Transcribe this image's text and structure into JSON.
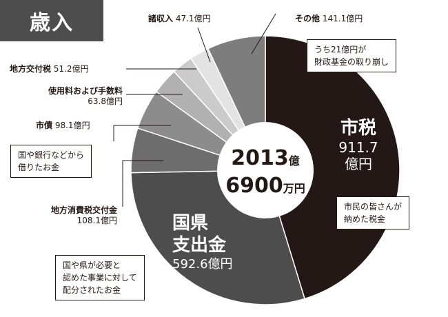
{
  "header": {
    "title": "歳入"
  },
  "chart_data": {
    "type": "pie",
    "total_label": {
      "line1": "2013",
      "line1_unit": "億",
      "line2": "6900",
      "line2_unit": "万円"
    },
    "slices": [
      {
        "name": "市税",
        "value": 911.7,
        "unit": "億円",
        "color": "#231815"
      },
      {
        "name": "国県支出金",
        "value": 592.6,
        "unit": "億円",
        "color": "#4d4d4d"
      },
      {
        "name": "地方消費税交付金",
        "value": 108.1,
        "unit": "億円",
        "color": "#6d6d6d"
      },
      {
        "name": "市債",
        "value": 98.1,
        "unit": "億円",
        "color": "#8c8c8c"
      },
      {
        "name": "使用料および手数料",
        "value": 63.8,
        "unit": "億円",
        "color": "#b1b1b1"
      },
      {
        "name": "地方交付税",
        "value": 51.2,
        "unit": "億円",
        "color": "#cbcbcb"
      },
      {
        "name": "諸収入",
        "value": 47.1,
        "unit": "億円",
        "color": "#e3e3e3"
      },
      {
        "name": "その他",
        "value": 141.1,
        "unit": "億円",
        "color": "#7d7d7d"
      }
    ],
    "labels": {
      "city_tax": {
        "name": "市税",
        "value": "911.7",
        "unit": "億円"
      },
      "national": {
        "name1": "国県",
        "name2": "支出金",
        "value": "592.6億円"
      },
      "chiho_shohi": {
        "name": "地方消費税交付金",
        "value": "108.1億円"
      },
      "shisai": {
        "name": "市債",
        "value": "98.1億円"
      },
      "shiyoryo": {
        "name": "使用料および手数料",
        "value": "63.8億円"
      },
      "kofuzei": {
        "name": "地方交付税",
        "value": "51.2億円"
      },
      "shoshunyu": {
        "name": "諸収入",
        "value": "47.1億円"
      },
      "sonota": {
        "name": "その他",
        "value": "141.1億円"
      }
    },
    "callouts": {
      "sonota": [
        "うち21億円が",
        "財政基金の取り崩し"
      ],
      "city_tax": [
        "市民の皆さんが",
        "納めた税金"
      ],
      "shisai": [
        "国や銀行などから",
        "借りたお金"
      ],
      "national": [
        "国や県が必要と",
        "認めた事業に対して",
        "配分されたお金"
      ]
    }
  }
}
